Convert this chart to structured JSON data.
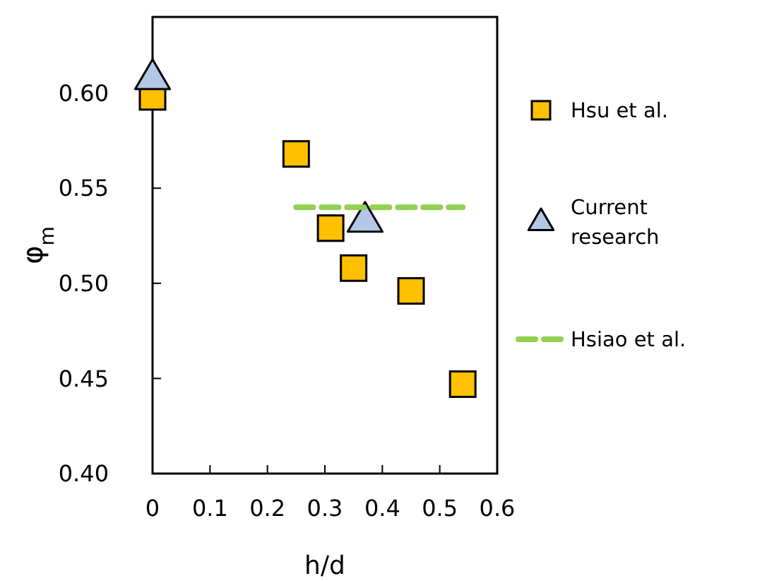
{
  "chart_data": {
    "type": "scatter",
    "xlabel": "h/d",
    "ylabel": "φ$_{m}$",
    "xlim": [
      0,
      0.6
    ],
    "ylim": [
      0.4,
      0.64
    ],
    "xticks": [
      0,
      0.1,
      0.2,
      0.3,
      0.4,
      0.5,
      0.6
    ],
    "yticks": [
      {
        "value": 0.4,
        "label": "0.40"
      },
      {
        "value": 0.45,
        "label": "0.45"
      },
      {
        "value": 0.5,
        "label": "0.50"
      },
      {
        "value": 0.55,
        "label": "0.55"
      },
      {
        "value": 0.6,
        "label": "0.60"
      }
    ],
    "grid": false,
    "legend": "right",
    "series": [
      {
        "name": "Hsu et al.",
        "marker": "square",
        "color": "#ffc000",
        "x": [
          0,
          0.25,
          0.31,
          0.35,
          0.45,
          0.54
        ],
        "values": [
          0.598,
          0.568,
          0.529,
          0.508,
          0.496,
          0.447
        ]
      },
      {
        "name": "Current research",
        "marker": "triangle",
        "color": "#b4c7e7",
        "x": [
          0,
          0.37
        ],
        "values": [
          0.608,
          0.533
        ]
      },
      {
        "name": "Hsiao et al.",
        "type": "line",
        "line_style": "dashed",
        "color": "#92d050",
        "x": [
          0.25,
          0.54
        ],
        "values": [
          0.54,
          0.54
        ]
      }
    ]
  }
}
